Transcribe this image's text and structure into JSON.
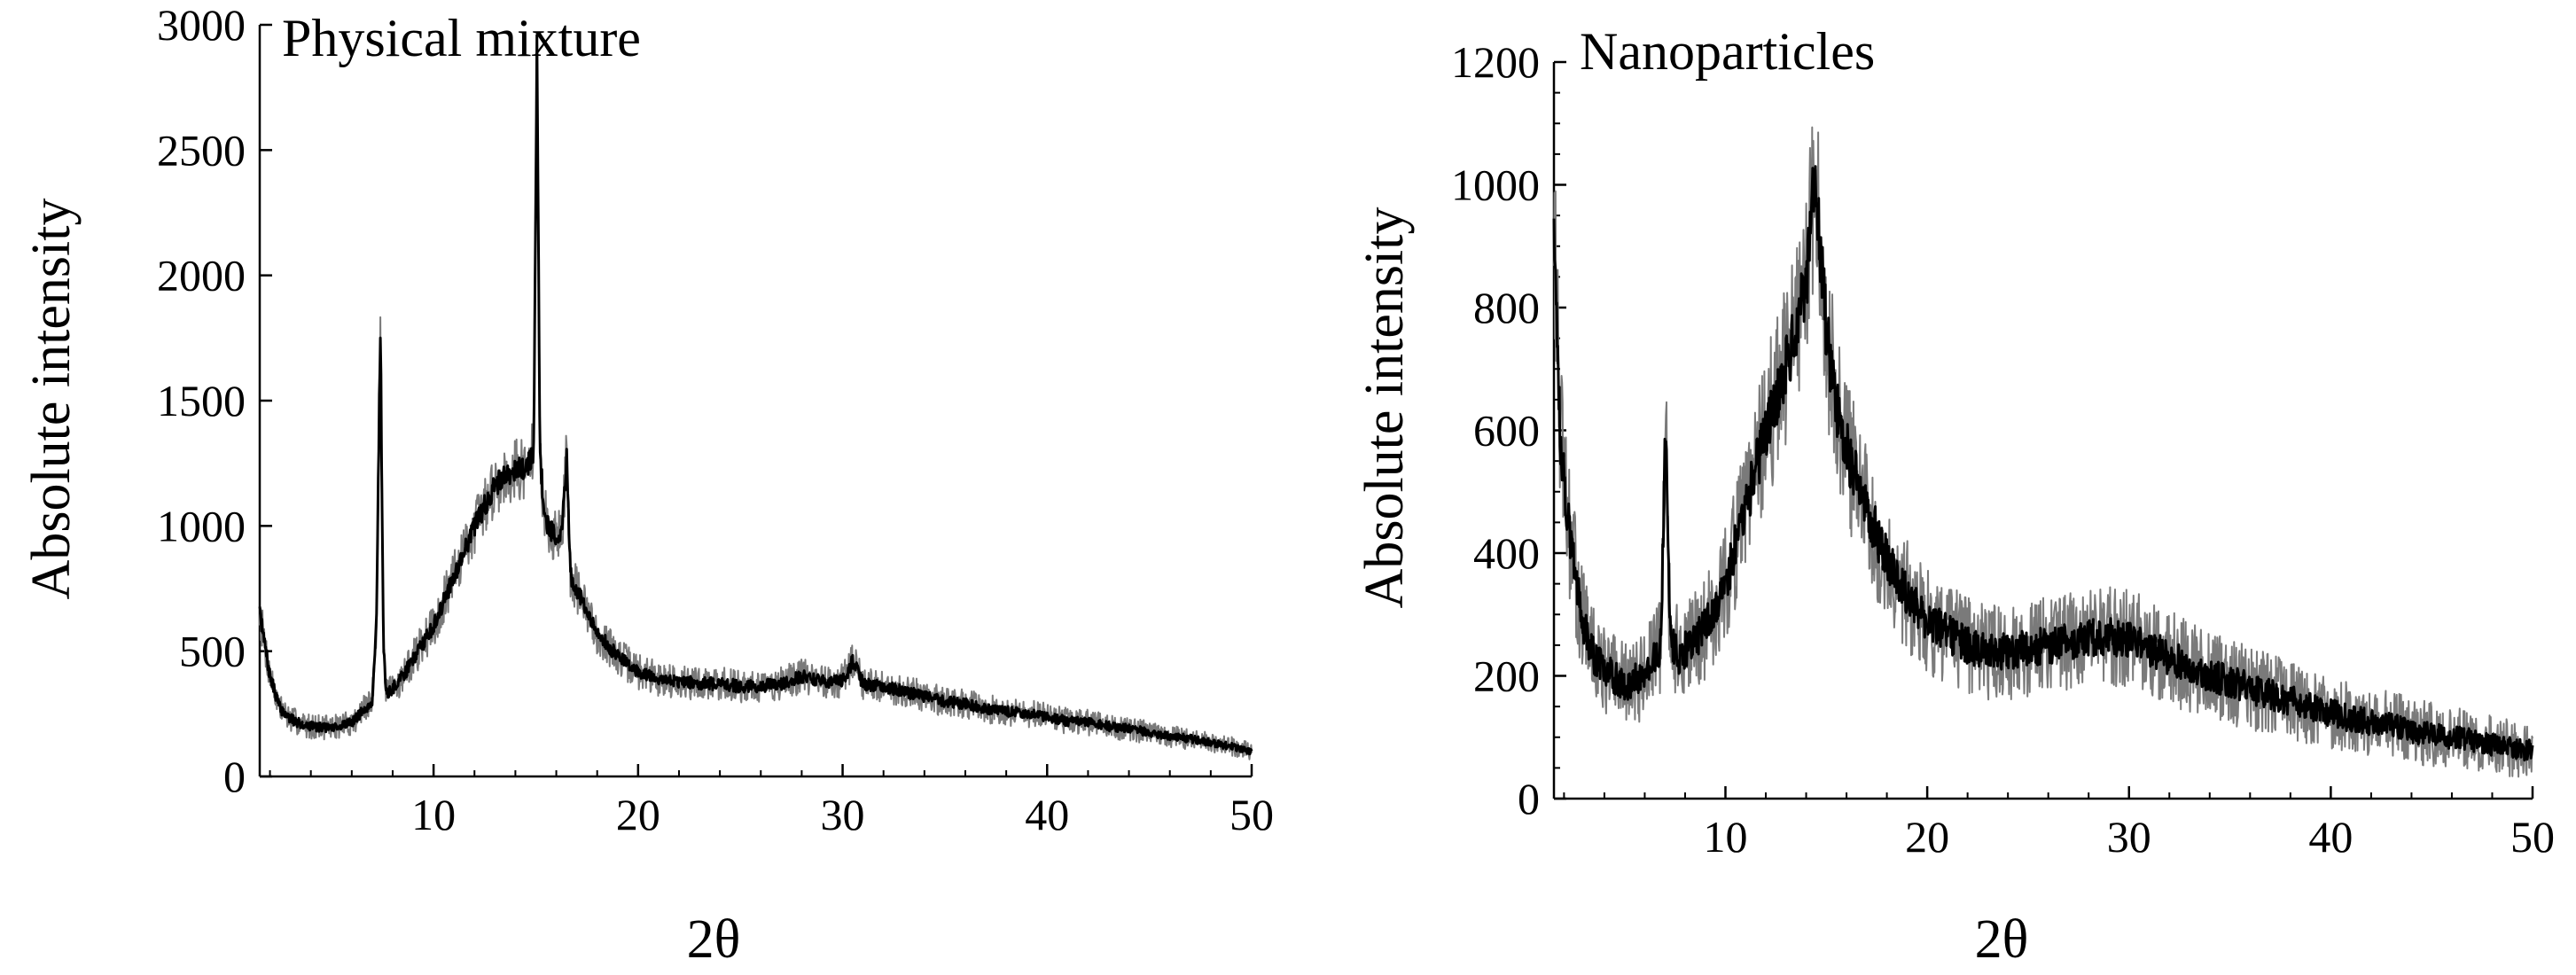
{
  "chart_data": [
    {
      "type": "line",
      "title": "Physical mixture",
      "xlabel": "2θ",
      "ylabel": "Absolute intensity",
      "xlim": [
        1.5,
        50
      ],
      "ylim": [
        0,
        3000
      ],
      "x_ticks": [
        10,
        20,
        30,
        40,
        50
      ],
      "y_ticks": [
        0,
        500,
        1000,
        1500,
        2000,
        2500,
        3000
      ],
      "grid": false,
      "x": [
        1.5,
        2,
        2.5,
        3,
        3.5,
        4,
        5,
        6,
        7,
        7.2,
        7.4,
        7.55,
        7.7,
        7.9,
        8.5,
        9,
        10,
        11,
        12,
        13,
        13.5,
        14,
        14.5,
        14.9,
        15.05,
        15.2,
        15.4,
        15.6,
        16,
        16.3,
        16.5,
        16.7,
        17,
        17.5,
        18,
        19,
        20,
        21,
        22,
        23,
        24,
        25,
        26,
        27,
        28,
        29,
        30,
        30.5,
        31,
        32,
        33,
        34,
        35,
        36,
        37,
        38,
        39,
        40,
        41,
        42,
        43,
        44,
        45,
        46,
        47,
        48,
        49,
        50
      ],
      "values": [
        650,
        400,
        270,
        230,
        210,
        200,
        195,
        215,
        300,
        600,
        1800,
        500,
        330,
        340,
        400,
        470,
        600,
        800,
        1000,
        1160,
        1200,
        1230,
        1220,
        1300,
        2950,
        1300,
        1050,
        1000,
        950,
        1000,
        1280,
        800,
        750,
        650,
        570,
        480,
        420,
        390,
        380,
        370,
        370,
        360,
        360,
        370,
        400,
        380,
        380,
        460,
        370,
        360,
        340,
        320,
        300,
        290,
        270,
        260,
        250,
        240,
        220,
        215,
        200,
        190,
        175,
        160,
        150,
        135,
        120,
        100
      ]
    },
    {
      "type": "line",
      "title": "Nanoparticles",
      "xlabel": "2θ",
      "ylabel": "Absolute intensity",
      "xlim": [
        1.5,
        50
      ],
      "ylim": [
        0,
        1200
      ],
      "x_ticks": [
        10,
        20,
        30,
        40,
        50
      ],
      "y_ticks": [
        0,
        200,
        400,
        600,
        800,
        1000,
        1200
      ],
      "grid": false,
      "x": [
        1.5,
        1.8,
        2.2,
        2.6,
        3,
        3.5,
        4,
        5,
        6,
        6.8,
        7.05,
        7.2,
        7.4,
        7.7,
        8.5,
        9,
        10,
        11,
        12,
        13,
        13.5,
        14,
        14.4,
        14.7,
        15,
        15.5,
        16,
        17,
        18,
        19,
        20,
        21,
        22,
        23,
        24,
        25,
        26,
        27,
        28,
        29,
        30,
        31,
        32,
        33,
        34,
        35,
        36,
        37,
        38,
        39,
        40,
        41,
        42,
        43,
        44,
        45,
        46,
        47,
        48,
        49,
        50
      ],
      "values": [
        950,
        600,
        450,
        350,
        280,
        230,
        210,
        185,
        200,
        250,
        630,
        330,
        250,
        230,
        260,
        280,
        350,
        470,
        600,
        700,
        770,
        830,
        1000,
        900,
        760,
        640,
        570,
        470,
        390,
        330,
        290,
        270,
        250,
        240,
        240,
        245,
        250,
        255,
        260,
        265,
        260,
        245,
        230,
        215,
        200,
        190,
        180,
        170,
        160,
        150,
        140,
        130,
        125,
        120,
        110,
        105,
        100,
        95,
        88,
        82,
        78
      ]
    }
  ]
}
